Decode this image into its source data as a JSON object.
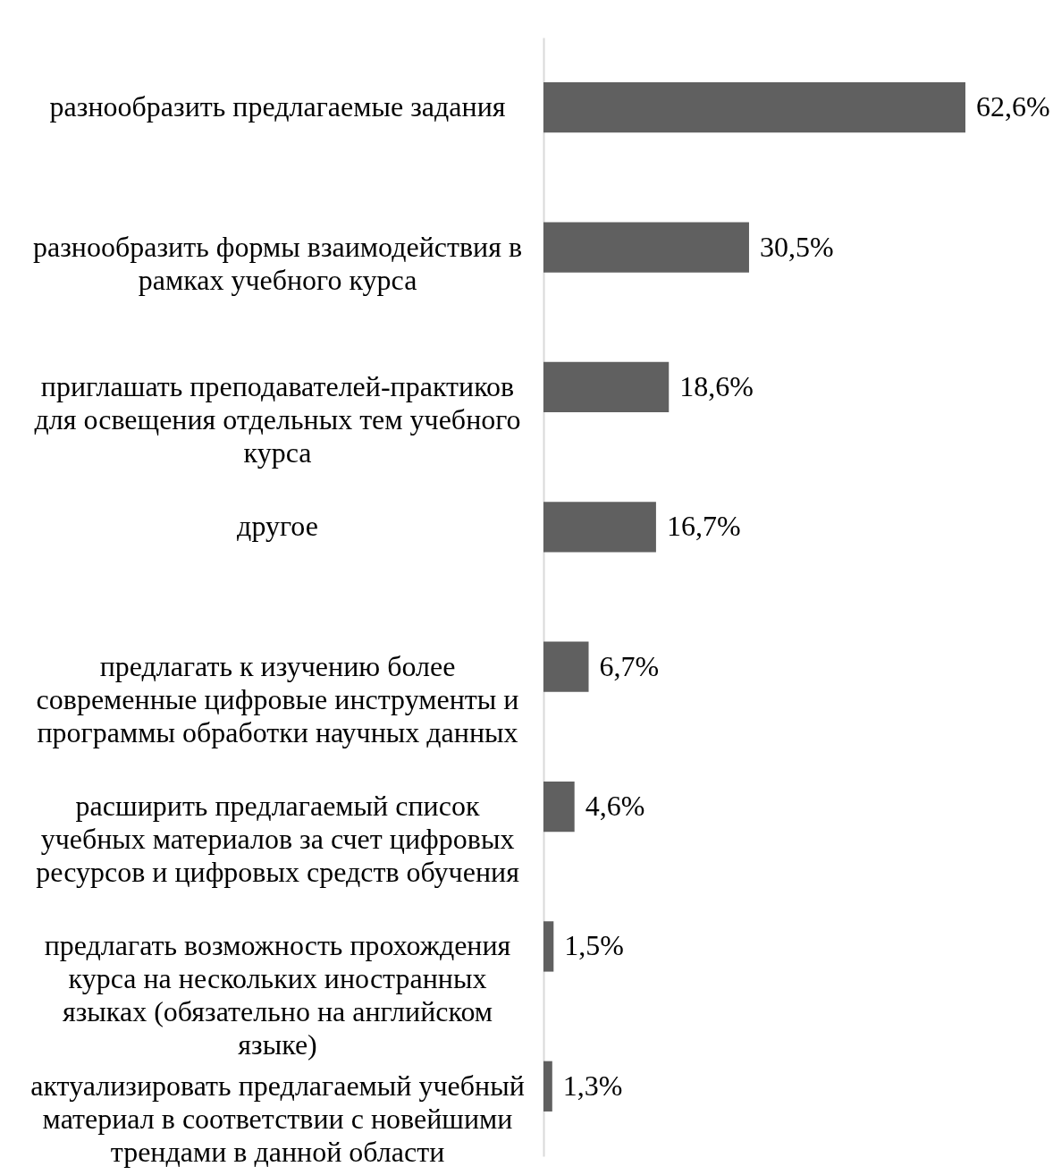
{
  "chart_data": {
    "type": "bar",
    "orientation": "horizontal",
    "categories": [
      "разнообразить предлагаемые задания",
      "разнообразить формы взаимодействия в рамках учебного курса",
      "приглашать преподавателей-практиков для освещения отдельных тем учебного курса",
      "другое",
      "предлагать к изучению более современные цифровые инструменты и программы обработки научных данных",
      "расширить предлагаемый список учебных материалов за счет цифровых ресурсов и цифровых средств обучения",
      "предлагать возможность прохождения курса на нескольких иностранных языках (обязательно на английском языке)",
      "актуализировать предлагаемый учебный материал в соответствии с новейшими трендами в данной области"
    ],
    "series": [
      {
        "color": "#606060",
        "values": [
          62.6,
          30.5,
          18.6,
          16.7,
          6.7,
          4.6,
          1.5,
          1.3
        ],
        "value_labels": [
          "62,6%",
          "30,5%",
          "18,6%",
          "16,7%",
          "6,7%",
          "4,6%",
          "1,5%",
          "1,3%"
        ]
      }
    ]
  }
}
